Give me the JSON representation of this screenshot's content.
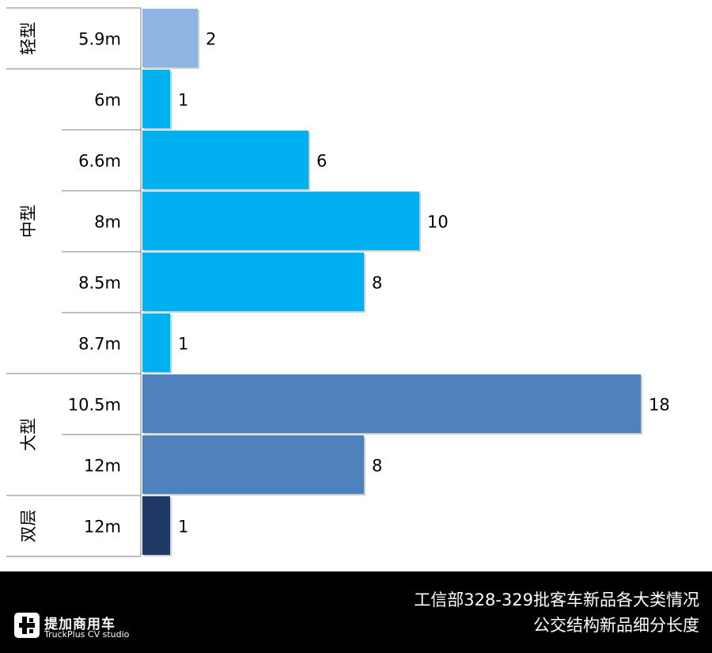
{
  "chart_data": {
    "type": "bar",
    "orientation": "horizontal",
    "title": "工信部328-329批客车新品各大类情况 公交结构新品细分长度",
    "groups": [
      {
        "name": "轻型",
        "color": "#8EB4E3",
        "categories": [
          "5.9m"
        ],
        "values": [
          2
        ]
      },
      {
        "name": "中型",
        "color": "#00B0F0",
        "categories": [
          "6m",
          "6.6m",
          "8m",
          "8.5m",
          "8.7m"
        ],
        "values": [
          1,
          6,
          10,
          8,
          1
        ]
      },
      {
        "name": "大型",
        "color": "#4F81BD",
        "categories": [
          "10.5m",
          "12m"
        ],
        "values": [
          18,
          8
        ]
      },
      {
        "name": "双层",
        "color": "#1F3864",
        "categories": [
          "12m"
        ],
        "values": [
          1
        ]
      }
    ],
    "xlim": [
      0,
      18
    ]
  },
  "footer": {
    "title_line1": "工信部328-329批客车新品各大类情况",
    "title_line2": "公交结构新品细分长度",
    "logo_cn": "提加商用车",
    "logo_en": "TruckPlus CV studio"
  }
}
